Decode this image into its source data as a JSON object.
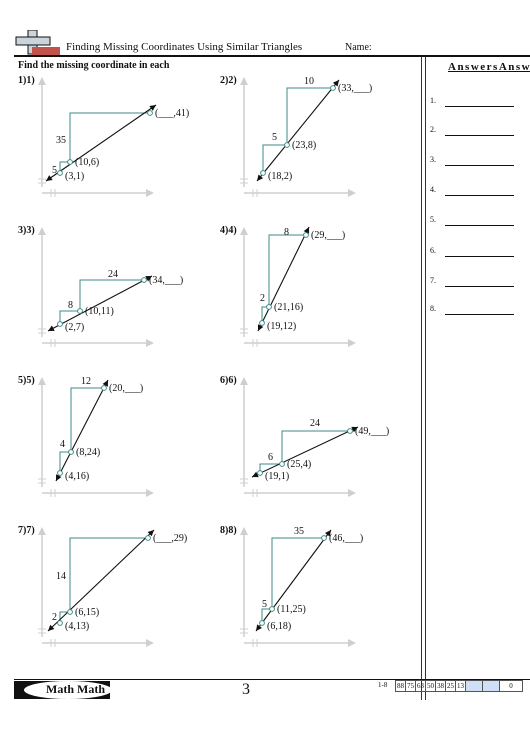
{
  "header": {
    "title": "Finding Missing Coordinates Using Similar Triangles",
    "name_label": "Name:",
    "instructions": "Find the missing coordinate in each"
  },
  "answers": {
    "heading": "AnswersAnsw",
    "rows": [
      "1.",
      "2.",
      "3.",
      "4.",
      "5.",
      "6.",
      "7.",
      "8."
    ]
  },
  "problems": [
    {
      "num": "1)1)",
      "p1": "(3,1)",
      "p2": "(10,6)",
      "p3": "(___,41)",
      "small": "5",
      "big": "35"
    },
    {
      "num": "2)2)",
      "p1": "(18,2)",
      "p2": "(23,8)",
      "p3": "(33,___)",
      "small": "5",
      "big": "10"
    },
    {
      "num": "3)3)",
      "p1": "(2,7)",
      "p2": "(10,11)",
      "p3": "(34,___)",
      "small": "8",
      "big": "24"
    },
    {
      "num": "4)4)",
      "p1": "(19,12)",
      "p2": "(21,16)",
      "p3": "(29,___)",
      "small": "2",
      "big": "8"
    },
    {
      "num": "5)5)",
      "p1": "(4,16)",
      "p2": "(8,24)",
      "p3": "(20,___)",
      "small": "4",
      "big": "12"
    },
    {
      "num": "6)6)",
      "p1": "(19,1)",
      "p2": "(25,4)",
      "p3": "(49,___)",
      "small": "6",
      "big": "24"
    },
    {
      "num": "7)7)",
      "p1": "(4,13)",
      "p2": "(6,15)",
      "p3": "(___,29)",
      "small": "2",
      "big": "14"
    },
    {
      "num": "8)8)",
      "p1": "(6,18)",
      "p2": "(11,25)",
      "p3": "(46,___)",
      "small": "5",
      "big": "35"
    }
  ],
  "footer": {
    "brand": "Math Math",
    "page_number": "3",
    "score_range": "1-8",
    "scores": [
      "88",
      "75",
      "63",
      "50",
      "38",
      "25",
      "13",
      "",
      "",
      "0"
    ]
  }
}
